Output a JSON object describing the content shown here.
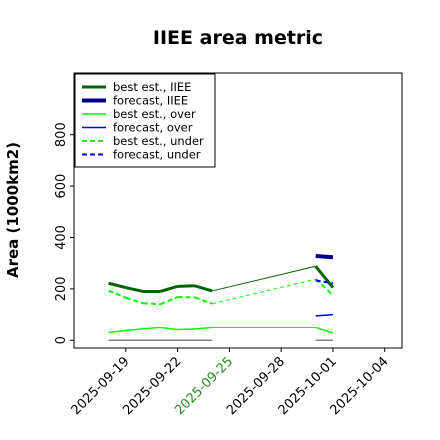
{
  "chart_data": {
    "type": "line",
    "title": "IIEE area metric",
    "ylabel": "Area (1000km2)",
    "xlabel": "",
    "x_ticks": [
      "2025-09-19",
      "2025-09-22",
      "2025-09-25",
      "2025-09-28",
      "2025-10-01",
      "2025-10-04"
    ],
    "highlight_tick": "2025-09-25",
    "y_ticks": [
      0,
      200,
      400,
      600,
      800
    ],
    "xlim": [
      "2025-09-16",
      "2025-10-05"
    ],
    "ylim": [
      -30,
      1040
    ],
    "grid": false,
    "legend_position": "top-left",
    "legend": [
      "best est., IIEE",
      "forecast, IIEE",
      "best est., over",
      "forecast, over",
      "best est., under",
      "forecast, under"
    ],
    "colors": {
      "best_iiee": "#006400",
      "forecast_iiee": "#00008b",
      "best_over": "#00ff00",
      "forecast_over": "#0000ff",
      "best_under": "#00ff00",
      "forecast_under": "#0000ff",
      "zero_line": "#808080",
      "highlight_tick": "#228b22"
    },
    "series": [
      {
        "name": "best est., IIEE",
        "points": [
          [
            "2025-09-18",
            222
          ],
          [
            "2025-09-19",
            205
          ],
          [
            "2025-09-20",
            190
          ],
          [
            "2025-09-21",
            190
          ],
          [
            "2025-09-22",
            210
          ],
          [
            "2025-09-23",
            212
          ],
          [
            "2025-09-24",
            192
          ],
          [
            "2025-09-30",
            288
          ],
          [
            "2025-10-01",
            205
          ]
        ]
      },
      {
        "name": "forecast, IIEE",
        "points": [
          [
            "2025-09-30",
            328
          ],
          [
            "2025-10-01",
            323
          ]
        ]
      },
      {
        "name": "best est., over",
        "points": [
          [
            "2025-09-18",
            30
          ],
          [
            "2025-09-19",
            38
          ],
          [
            "2025-09-20",
            45
          ],
          [
            "2025-09-21",
            50
          ],
          [
            "2025-09-22",
            42
          ],
          [
            "2025-09-23",
            44
          ],
          [
            "2025-09-24",
            50
          ],
          [
            "2025-09-30",
            50
          ],
          [
            "2025-10-01",
            28
          ]
        ]
      },
      {
        "name": "forecast, over",
        "points": [
          [
            "2025-09-30",
            95
          ],
          [
            "2025-10-01",
            100
          ]
        ]
      },
      {
        "name": "best est., under",
        "points": [
          [
            "2025-09-18",
            193
          ],
          [
            "2025-09-19",
            166
          ],
          [
            "2025-09-20",
            144
          ],
          [
            "2025-09-21",
            140
          ],
          [
            "2025-09-22",
            168
          ],
          [
            "2025-09-23",
            167
          ],
          [
            "2025-09-24",
            142
          ],
          [
            "2025-09-30",
            238
          ],
          [
            "2025-10-01",
            176
          ]
        ]
      },
      {
        "name": "forecast, under",
        "points": [
          [
            "2025-09-30",
            233
          ],
          [
            "2025-10-01",
            222
          ]
        ]
      }
    ],
    "zero_segments": [
      [
        [
          "2025-09-18",
          0
        ],
        [
          "2025-09-24",
          0
        ]
      ],
      [
        [
          "2025-09-30",
          0
        ],
        [
          "2025-10-01",
          0
        ]
      ]
    ]
  }
}
